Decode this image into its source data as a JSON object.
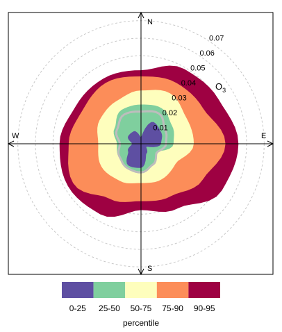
{
  "chart_data": {
    "type": "percentile-rose",
    "pollutant_label": "O",
    "pollutant_subscript": "3",
    "directions": {
      "north": "N",
      "east": "E",
      "south": "S",
      "west": "W"
    },
    "radial_axis": {
      "max": 0.075,
      "ticks": [
        0.01,
        0.02,
        0.03,
        0.04,
        0.05,
        0.06,
        0.07
      ],
      "tick_labels": [
        "0.01",
        "0.02",
        "0.03",
        "0.04",
        "0.05",
        "0.06",
        "0.07"
      ],
      "grid": true
    },
    "angles_deg": [
      0,
      30,
      60,
      90,
      120,
      150,
      180,
      210,
      240,
      270,
      300,
      330
    ],
    "series": [
      {
        "color": "#5e4fa2",
        "radii": [
          0.0038,
          0.0143,
          0.0132,
          0.0114,
          0.0035,
          0.0063,
          0.0137,
          0.0143,
          0.0085,
          0.0051,
          0.0085,
          0.0082
        ]
      },
      {
        "color": "#7fcf9e",
        "radii": [
          0.0223,
          0.0234,
          0.0204,
          0.0185,
          0.0097,
          0.0131,
          0.0157,
          0.0154,
          0.0147,
          0.0137,
          0.0174,
          0.0222
        ]
      },
      {
        "color": "#fefebd",
        "radii": [
          0.0303,
          0.0331,
          0.0297,
          0.03,
          0.0227,
          0.0234,
          0.0223,
          0.0243,
          0.026,
          0.0243,
          0.0271,
          0.028
        ]
      },
      {
        "color": "#fc8d59",
        "radii": [
          0.0383,
          0.04,
          0.0406,
          0.048,
          0.0406,
          0.0343,
          0.0326,
          0.036,
          0.0446,
          0.0411,
          0.0383,
          0.04
        ]
      },
      {
        "color": "#9e0142",
        "radii": [
          0.0418,
          0.0491,
          0.0508,
          0.0554,
          0.0531,
          0.0423,
          0.0377,
          0.0463,
          0.048,
          0.0463,
          0.0428,
          0.0428
        ]
      }
    ],
    "median_line": {
      "color": "#bdbdbd",
      "radii": [
        0.0183,
        0.02,
        0.0158,
        0.0142,
        0.0103,
        0.0136,
        0.0163,
        0.0158,
        0.0142,
        0.012,
        0.0158,
        0.0192
      ]
    },
    "legend": {
      "labels": [
        "0-25",
        "25-50",
        "50-75",
        "75-90",
        "90-95"
      ],
      "title": "percentile",
      "colors": [
        "#5e4fa2",
        "#7fcf9e",
        "#fefebd",
        "#fc8d59",
        "#9e0142"
      ],
      "placement": "bottom"
    }
  }
}
